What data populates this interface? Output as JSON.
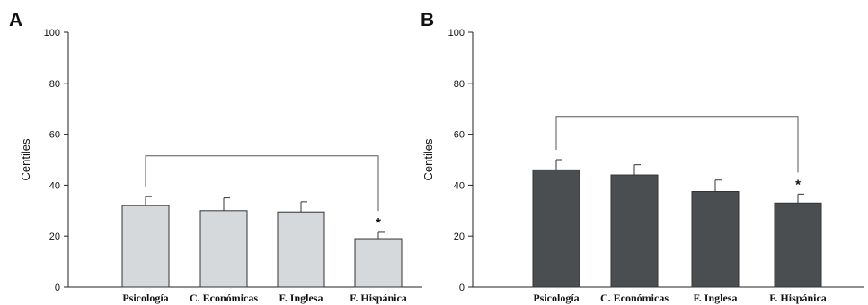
{
  "chart_data": [
    {
      "type": "bar",
      "panel_label": "A",
      "ylabel": "Centiles",
      "ylim": [
        0,
        100
      ],
      "yticks": [
        0,
        20,
        40,
        60,
        80,
        100
      ],
      "categories": [
        "Psicología",
        "C. Económicas",
        "F. Inglesa",
        "F. Hispánica"
      ],
      "values": [
        32,
        30,
        29.5,
        19
      ],
      "errors": [
        3.5,
        5,
        4,
        2.5
      ],
      "bar_color": "#d6d9db",
      "comparison": {
        "from": 0,
        "to": 3,
        "level": 51.5,
        "marker": "*",
        "marked_category": 3
      }
    },
    {
      "type": "bar",
      "panel_label": "B",
      "ylabel": "Centiles",
      "ylim": [
        0,
        100
      ],
      "yticks": [
        0,
        20,
        40,
        60,
        80,
        100
      ],
      "categories": [
        "Psicología",
        "C. Económicas",
        "F. Inglesa",
        "F. Hispánica"
      ],
      "values": [
        46,
        44,
        37.5,
        33
      ],
      "errors": [
        4,
        4,
        4.5,
        3.5
      ],
      "bar_color": "#4a4e51",
      "comparison": {
        "from": 0,
        "to": 3,
        "level": 67,
        "marker": "*",
        "marked_category": 3
      }
    }
  ]
}
